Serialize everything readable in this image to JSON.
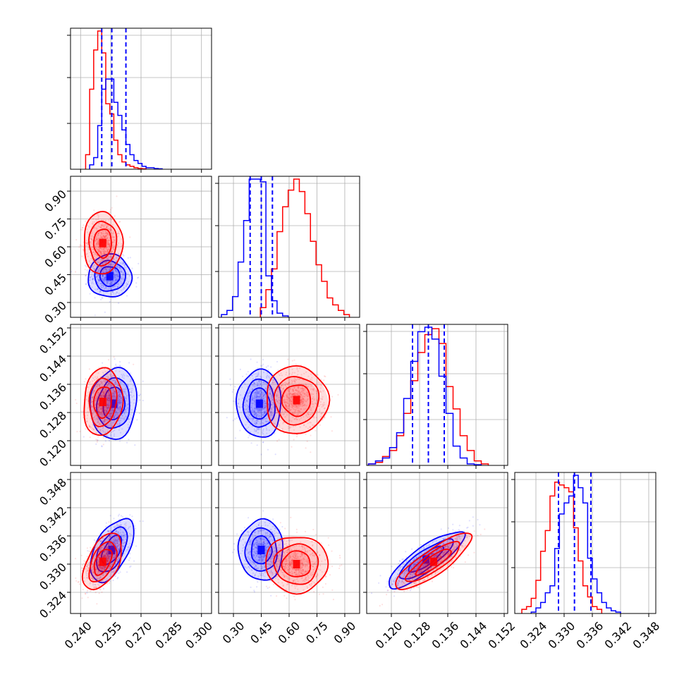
{
  "colors": {
    "series_a": "#ff0000",
    "series_b": "#0000ff",
    "grid": "#b0b0b0",
    "frame": "#000000"
  },
  "chart_data": {
    "type": "corner",
    "parameters": [
      {
        "range": [
          0.235,
          0.305
        ],
        "ticks": [
          "0.240",
          "0.255",
          "0.270",
          "0.285",
          "0.300"
        ]
      },
      {
        "range": [
          0.22,
          0.98
        ],
        "ticks": [
          "0.30",
          "0.45",
          "0.60",
          "0.75",
          "0.90"
        ]
      },
      {
        "range": [
          0.113,
          0.153
        ],
        "ticks": [
          "0.120",
          "0.128",
          "0.136",
          "0.144",
          "0.152"
        ]
      },
      {
        "range": [
          0.3195,
          0.3495
        ],
        "ticks": [
          "0.324",
          "0.330",
          "0.336",
          "0.342",
          "0.348"
        ]
      }
    ],
    "series": [
      {
        "color": "#0000ff",
        "quantile_lines": [
          [
            0.2505,
            0.2555,
            0.2625
          ],
          [
            0.39,
            0.45,
            0.51
          ],
          [
            0.126,
            0.1305,
            0.135
          ],
          [
            0.3288,
            0.3322,
            0.3357
          ]
        ],
        "histograms": [
          {
            "bins": [
              0.2455,
              0.2475,
              0.2495,
              0.2515,
              0.2535,
              0.2555,
              0.2575,
              0.2595,
              0.2615,
              0.2635,
              0.2655,
              0.2675,
              0.2695,
              0.2715,
              0.2735,
              0.2755,
              0.2775,
              0.2795
            ],
            "counts": [
              3,
              8,
              30,
              55,
              62,
              62,
              46,
              37,
              27,
              17,
              10,
              6,
              4,
              2,
              1,
              1,
              0.5,
              0.3
            ]
          },
          {
            "bins": [
              0.25,
              0.28,
              0.31,
              0.34,
              0.37,
              0.4,
              0.43,
              0.46,
              0.49,
              0.52,
              0.55,
              0.58
            ],
            "counts": [
              2,
              5,
              15,
              40,
              70,
              100,
              100,
              98,
              30,
              12,
              3,
              1
            ]
          },
          {
            "bins": [
              0.1145,
              0.1165,
              0.1185,
              0.1205,
              0.1225,
              0.1245,
              0.1265,
              0.1285,
              0.1305,
              0.1325,
              0.1345,
              0.1365,
              0.1385,
              0.1405,
              0.1425,
              0.1445
            ],
            "counts": [
              1,
              3,
              5,
              12,
              22,
              45,
              70,
              90,
              93,
              85,
              60,
              35,
              13,
              5,
              1,
              0.5
            ]
          },
          {
            "bins": [
              0.3235,
              0.3245,
              0.3255,
              0.3265,
              0.3275,
              0.3285,
              0.3295,
              0.3305,
              0.3315,
              0.3325,
              0.3335,
              0.3345,
              0.3355,
              0.3365,
              0.3375,
              0.3385,
              0.3395,
              0.3405,
              0.3415
            ],
            "counts": [
              1,
              4,
              8,
              15,
              20,
              47,
              72,
              80,
              85,
              100,
              91,
              80,
              40,
              25,
              15,
              8,
              4,
              2,
              1
            ]
          }
        ],
        "densities": [
          {
            "params": [
              0,
              1
            ],
            "center": [
              0.2545,
              0.442
            ],
            "sigma": [
              0.0045,
              0.048
            ],
            "rho": 0.0
          },
          {
            "params": [
              0,
              2
            ],
            "center": [
              0.2565,
              0.1305
            ],
            "sigma": [
              0.0048,
              0.0042
            ],
            "rho": 0.1
          },
          {
            "params": [
              1,
              2
            ],
            "center": [
              0.44,
              0.1305
            ],
            "sigma": [
              0.05,
              0.004
            ],
            "rho": 0.0
          },
          {
            "params": [
              0,
              3
            ],
            "center": [
              0.2555,
              0.333
            ],
            "sigma": [
              0.0045,
              0.0028
            ],
            "rho": 0.55
          },
          {
            "params": [
              1,
              3
            ],
            "center": [
              0.45,
              0.333
            ],
            "sigma": [
              0.05,
              0.0027
            ],
            "rho": 0.0
          },
          {
            "params": [
              2,
              3
            ],
            "center": [
              0.1298,
              0.331
            ],
            "sigma": [
              0.0045,
              0.0025
            ],
            "rho": 0.85
          }
        ]
      },
      {
        "color": "#ff0000",
        "quantile_lines": [],
        "histograms": [
          {
            "bins": [
              0.2435,
              0.2455,
              0.2475,
              0.2495,
              0.2515,
              0.2535,
              0.2555,
              0.2575,
              0.2595,
              0.2615,
              0.2635,
              0.2655,
              0.2675,
              0.2695,
              0.2715
            ],
            "counts": [
              10,
              55,
              82,
              95,
              80,
              45,
              38,
              20,
              10,
              5,
              3,
              2,
              1,
              0.5,
              0.3
            ]
          },
          {
            "bins": [
              0.46,
              0.49,
              0.52,
              0.55,
              0.58,
              0.61,
              0.64,
              0.67,
              0.7,
              0.73,
              0.76,
              0.79,
              0.82,
              0.85,
              0.88,
              0.91
            ],
            "counts": [
              7,
              20,
              35,
              62,
              80,
              92,
              100,
              91,
              75,
              55,
              38,
              26,
              14,
              9,
              5,
              2
            ]
          },
          {
            "bins": [
              0.1145,
              0.1165,
              0.1185,
              0.1205,
              0.1225,
              0.1245,
              0.1265,
              0.1285,
              0.1305,
              0.1325,
              0.1345,
              0.1365,
              0.1385,
              0.1405,
              0.1425,
              0.1445,
              0.1465
            ],
            "counts": [
              1,
              2,
              6,
              10,
              20,
              35,
              57,
              76,
              88,
              92,
              82,
              53,
              38,
              20,
              10,
              3,
              1
            ]
          },
          {
            "bins": [
              0.3215,
              0.3225,
              0.3235,
              0.3245,
              0.3255,
              0.3265,
              0.3275,
              0.3285,
              0.3295,
              0.3305,
              0.3315,
              0.3325,
              0.3335,
              0.3345,
              0.3355,
              0.3365,
              0.3375
            ],
            "counts": [
              3,
              5,
              11,
              24,
              45,
              60,
              85,
              95,
              93,
              91,
              88,
              62,
              38,
              20,
              12,
              5,
              3
            ]
          }
        ],
        "densities": [
          {
            "params": [
              0,
              1
            ],
            "center": [
              0.251,
              0.62
            ],
            "sigma": [
              0.004,
              0.07
            ],
            "rho": 0.0
          },
          {
            "params": [
              0,
              2
            ],
            "center": [
              0.251,
              0.131
            ],
            "sigma": [
              0.004,
              0.004
            ],
            "rho": 0.1
          },
          {
            "params": [
              1,
              2
            ],
            "center": [
              0.64,
              0.1315
            ],
            "sigma": [
              0.07,
              0.004
            ],
            "rho": 0.0
          },
          {
            "params": [
              0,
              3
            ],
            "center": [
              0.251,
              0.3305
            ],
            "sigma": [
              0.004,
              0.0025
            ],
            "rho": 0.5
          },
          {
            "params": [
              1,
              3
            ],
            "center": [
              0.64,
              0.33
            ],
            "sigma": [
              0.07,
              0.0025
            ],
            "rho": 0.0
          },
          {
            "params": [
              2,
              3
            ],
            "center": [
              0.132,
              0.3305
            ],
            "sigma": [
              0.0045,
              0.0025
            ],
            "rho": 0.85
          }
        ]
      }
    ],
    "grid": true,
    "legend": "none"
  }
}
